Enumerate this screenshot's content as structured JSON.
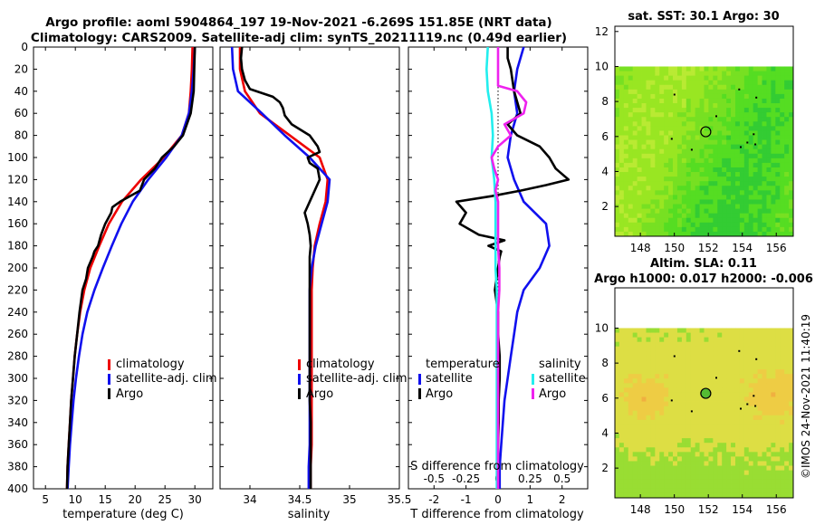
{
  "titles": {
    "line1": "Argo profile: aoml 5904864_197 19-Nov-2021 -6.269S 151.85E (NRT data)",
    "line2": "Climatology: CARS2009. Satellite-adj clim: synTS_20211119.nc (0.49d earlier)"
  },
  "colors": {
    "climatology": "#ee0000",
    "satellite": "#1010ee",
    "argo": "#000000",
    "salinity_argo": "#ee22ee",
    "salinity_satellite": "#22eeee"
  },
  "credit": "©IMOS 24-Nov-2021 11:40:19",
  "chart_data": [
    {
      "type": "line",
      "name": "temperature-profile",
      "xlabel": "temperature (deg C)",
      "xlim": [
        3,
        33
      ],
      "ylim": [
        400,
        0
      ],
      "xticks": [
        5,
        10,
        15,
        20,
        25,
        30
      ],
      "yticks": [
        0,
        20,
        40,
        60,
        80,
        100,
        120,
        140,
        160,
        180,
        200,
        220,
        240,
        260,
        280,
        300,
        320,
        340,
        360,
        380,
        400
      ],
      "legend": [
        "climatology",
        "satellite-adj. clim",
        "Argo"
      ],
      "series": [
        {
          "name": "climatology",
          "color": "#ee0000",
          "depth": [
            0,
            20,
            40,
            60,
            80,
            100,
            120,
            140,
            160,
            180,
            200,
            220,
            240,
            260,
            280,
            300,
            320,
            340,
            360,
            380,
            400
          ],
          "values": [
            29.6,
            29.5,
            29.3,
            29.0,
            27.8,
            24.8,
            21.0,
            17.8,
            15.6,
            14.0,
            12.5,
            11.5,
            10.8,
            10.3,
            9.9,
            9.6,
            9.3,
            9.1,
            8.9,
            8.7,
            8.6
          ]
        },
        {
          "name": "satellite-adj. clim",
          "color": "#1010ee",
          "depth": [
            0,
            20,
            40,
            60,
            80,
            100,
            120,
            140,
            160,
            180,
            200,
            220,
            240,
            260,
            280,
            300,
            320,
            340,
            360,
            380,
            400
          ],
          "values": [
            30.0,
            29.8,
            29.5,
            29.0,
            27.8,
            25.2,
            22.2,
            19.6,
            17.7,
            16.1,
            14.6,
            13.2,
            12.0,
            11.2,
            10.6,
            10.1,
            9.7,
            9.4,
            9.1,
            8.9,
            8.7
          ]
        },
        {
          "name": "Argo",
          "color": "#000000",
          "depth": [
            0,
            20,
            40,
            60,
            80,
            90,
            100,
            110,
            120,
            130,
            140,
            145,
            150,
            160,
            170,
            180,
            185,
            190,
            200,
            210,
            220,
            240,
            260,
            280,
            300,
            320,
            340,
            360,
            380,
            400
          ],
          "values": [
            30.0,
            29.9,
            29.8,
            29.3,
            28.0,
            26.5,
            24.5,
            23.3,
            21.5,
            20.8,
            17.5,
            16.2,
            16.0,
            15.0,
            14.3,
            13.8,
            13.2,
            12.9,
            12.1,
            11.8,
            11.2,
            10.7,
            10.3,
            9.9,
            9.6,
            9.3,
            9.1,
            8.9,
            8.7,
            8.6
          ]
        }
      ]
    },
    {
      "type": "line",
      "name": "salinity-profile",
      "xlabel": "salinity",
      "xlim": [
        33.7,
        35.5
      ],
      "ylim": [
        400,
        0
      ],
      "xticks": [
        34,
        34.5,
        35,
        35.5
      ],
      "legend": [
        "climatology",
        "satellite-adj. clim",
        "Argo"
      ],
      "series": [
        {
          "name": "climatology",
          "color": "#ee0000",
          "depth": [
            0,
            20,
            40,
            60,
            80,
            100,
            120,
            140,
            160,
            180,
            200,
            220,
            240,
            260,
            280,
            300,
            320,
            340,
            360,
            380,
            400
          ],
          "values": [
            33.9,
            33.9,
            33.95,
            34.1,
            34.4,
            34.7,
            34.78,
            34.76,
            34.7,
            34.65,
            34.63,
            34.62,
            34.62,
            34.62,
            34.62,
            34.62,
            34.62,
            34.62,
            34.62,
            34.61,
            34.61
          ]
        },
        {
          "name": "satellite-adj. clim",
          "color": "#1010ee",
          "depth": [
            0,
            20,
            40,
            60,
            80,
            100,
            120,
            140,
            160,
            180,
            200,
            220,
            240,
            260,
            280,
            300,
            320,
            340,
            360,
            380,
            400
          ],
          "values": [
            33.82,
            33.83,
            33.88,
            34.12,
            34.35,
            34.6,
            34.8,
            34.78,
            34.72,
            34.66,
            34.62,
            34.6,
            34.6,
            34.6,
            34.6,
            34.6,
            34.6,
            34.6,
            34.6,
            34.59,
            34.59
          ]
        },
        {
          "name": "Argo",
          "color": "#000000",
          "depth": [
            0,
            10,
            20,
            30,
            38,
            45,
            50,
            55,
            62,
            70,
            80,
            90,
            95,
            100,
            105,
            110,
            120,
            130,
            140,
            150,
            160,
            170,
            180,
            190,
            200,
            220,
            240,
            260,
            280,
            300,
            320,
            340,
            360,
            380,
            400
          ],
          "values": [
            33.92,
            33.91,
            33.92,
            33.95,
            34.0,
            34.23,
            34.3,
            34.33,
            34.35,
            34.42,
            34.6,
            34.68,
            34.7,
            34.58,
            34.6,
            34.68,
            34.7,
            34.65,
            34.6,
            34.55,
            34.58,
            34.6,
            34.61,
            34.6,
            34.6,
            34.6,
            34.6,
            34.6,
            34.6,
            34.6,
            34.6,
            34.61,
            34.61,
            34.61,
            34.61
          ]
        }
      ]
    },
    {
      "type": "line",
      "name": "difference-profile",
      "xlabel": "T difference from climatology",
      "xlabel2": "S difference from climatology",
      "xlim": [
        -2.8,
        2.8
      ],
      "ylim": [
        400,
        0
      ],
      "xticks": [
        -2,
        -1,
        0,
        1,
        2
      ],
      "xticks2": [
        -0.5,
        -0.25,
        0,
        0.25,
        0.5
      ],
      "xticks2_labels": [
        "-0.5",
        "-0.25",
        "0",
        "0.25",
        "0.5"
      ],
      "legend_temperature": {
        "heading": "temperature",
        "items": [
          "satellite",
          "Argo"
        ]
      },
      "legend_salinity": {
        "heading": "salinity",
        "items": [
          "satellite",
          "Argo"
        ]
      },
      "series": [
        {
          "name": "temperature satellite",
          "color": "#1010ee",
          "depth": [
            0,
            20,
            40,
            60,
            80,
            100,
            120,
            140,
            160,
            180,
            200,
            220,
            240,
            260,
            280,
            300,
            320,
            340,
            360,
            380,
            400
          ],
          "values": [
            0.8,
            0.6,
            0.5,
            0.6,
            0.4,
            0.3,
            0.5,
            0.8,
            1.5,
            1.6,
            1.3,
            0.8,
            0.6,
            0.5,
            0.4,
            0.3,
            0.2,
            0.15,
            0.1,
            0.05,
            0.05
          ]
        },
        {
          "name": "temperature Argo",
          "color": "#000000",
          "depth": [
            0,
            10,
            20,
            40,
            60,
            70,
            80,
            90,
            100,
            110,
            115,
            120,
            125,
            130,
            135,
            140,
            150,
            160,
            170,
            175,
            180,
            185,
            190,
            200,
            220,
            240,
            260,
            280,
            300,
            320,
            340,
            360,
            380,
            400
          ],
          "values": [
            0.3,
            0.3,
            0.4,
            0.5,
            0.7,
            0.3,
            0.6,
            1.3,
            1.6,
            1.8,
            2.0,
            2.2,
            1.5,
            0.7,
            -0.2,
            -1.3,
            -1.0,
            -1.2,
            -0.6,
            0.2,
            -0.3,
            0.1,
            0.05,
            0.0,
            -0.1,
            0.0,
            0.0,
            0.05,
            0.05,
            0.02,
            0.02,
            0.0,
            0.0,
            0.0
          ]
        },
        {
          "name": "salinity satellite",
          "color": "#22eeee",
          "depth": [
            0,
            20,
            40,
            60,
            80,
            100,
            120,
            140,
            160,
            180,
            200,
            220,
            240,
            260,
            280,
            300,
            320,
            340,
            360,
            380,
            400
          ],
          "values": [
            -0.08,
            -0.09,
            -0.08,
            -0.05,
            -0.04,
            -0.05,
            -0.03,
            -0.02,
            -0.02,
            -0.02,
            -0.02,
            -0.01,
            -0.01,
            -0.01,
            -0.01,
            -0.01,
            -0.01,
            -0.01,
            -0.01,
            -0.01,
            -0.01
          ]
        },
        {
          "name": "salinity Argo",
          "color": "#ee22ee",
          "depth": [
            0,
            20,
            35,
            40,
            50,
            60,
            70,
            80,
            90,
            100,
            110,
            120,
            130,
            140,
            160,
            180,
            200,
            220,
            240,
            260,
            280,
            300,
            320,
            340,
            360,
            380,
            400
          ],
          "values": [
            0.0,
            0.0,
            0.0,
            0.15,
            0.22,
            0.2,
            0.05,
            0.1,
            0.0,
            -0.05,
            -0.03,
            0.0,
            -0.02,
            0.0,
            0.0,
            0.0,
            0.01,
            0.01,
            0.0,
            0.0,
            0.0,
            0.0,
            0.0,
            0.0,
            0.0,
            0.0,
            0.0
          ]
        }
      ]
    },
    {
      "type": "heatmap",
      "name": "sst-map",
      "title": "sat. SST: 30.1 Argo: 30",
      "xlim": [
        146.5,
        157
      ],
      "ylim": [
        0.3,
        12.3
      ],
      "xticks": [
        148,
        150,
        152,
        154,
        156
      ],
      "yticks": [
        2,
        4,
        6,
        8,
        10,
        12
      ],
      "data_extent_lat": [
        0.3,
        10
      ],
      "argo_position": {
        "lon": 151.85,
        "lat": 6.27
      },
      "palette": [
        "#33cc33",
        "#55dd22",
        "#77e022",
        "#99e622",
        "#b9ea33"
      ]
    },
    {
      "type": "heatmap",
      "name": "sla-map",
      "title": "Altim. SLA: 0.11",
      "subtitle": "Argo h1000: 0.017 h2000: -0.006",
      "xlim": [
        146.5,
        157
      ],
      "ylim": [
        0.3,
        12.3
      ],
      "xticks": [
        148,
        150,
        152,
        154,
        156
      ],
      "yticks": [
        2,
        4,
        6,
        8,
        10
      ],
      "data_extent_lat": [
        0.3,
        10
      ],
      "argo_position": {
        "lon": 151.85,
        "lat": 6.27
      },
      "palette": [
        "#44cc33",
        "#99dd33",
        "#ddde44",
        "#eecc44",
        "#f0b040"
      ]
    }
  ]
}
